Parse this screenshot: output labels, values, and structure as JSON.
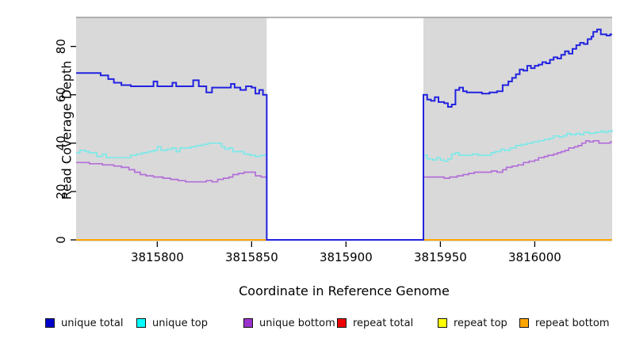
{
  "chart_data": {
    "type": "line",
    "step": true,
    "title": "",
    "xlabel": "Coordinate in Reference Genome",
    "ylabel": "Read Coverage Depth",
    "xlim": [
      3815757,
      3816041
    ],
    "ylim": [
      0,
      92
    ],
    "x_ticks": [
      3815800,
      3815850,
      3815900,
      3815950,
      3816000
    ],
    "y_ticks": [
      0,
      20,
      40,
      60,
      80
    ],
    "grid": false,
    "panel_background": "#d9d9d9",
    "gap_region": {
      "from": 3815858,
      "to": 3815941,
      "color": "#ffffff"
    },
    "top_border_color": "#9a9a9a",
    "axis_color": "#000000",
    "legend": {
      "position": "bottom",
      "items": [
        {
          "label": "unique total",
          "color": "#0000cc"
        },
        {
          "label": "unique top",
          "color": "#00ffff"
        },
        {
          "label": "unique bottom",
          "color": "#9933cc"
        },
        {
          "label": "repeat total",
          "color": "#ee0000"
        },
        {
          "label": "repeat top",
          "color": "#ffff00"
        },
        {
          "label": "repeat bottom",
          "color": "#ffa500"
        }
      ]
    },
    "series": [
      {
        "name": "repeat total",
        "color": "#ee0000",
        "width": 1.4,
        "segments": [
          [
            [
              3815757,
              0
            ],
            [
              3815858,
              0
            ]
          ],
          [
            [
              3815941,
              0
            ],
            [
              3816041,
              0
            ]
          ]
        ]
      },
      {
        "name": "repeat top",
        "color": "#ffff00",
        "width": 1.4,
        "segments": [
          [
            [
              3815757,
              0
            ],
            [
              3815858,
              0
            ]
          ],
          [
            [
              3815941,
              0
            ],
            [
              3816041,
              0
            ]
          ]
        ]
      },
      {
        "name": "repeat bottom",
        "color": "#ffa500",
        "width": 1.8,
        "segments": [
          [
            [
              3815757,
              0
            ],
            [
              3815858,
              0
            ]
          ],
          [
            [
              3815941,
              0
            ],
            [
              3816041,
              0
            ]
          ]
        ]
      },
      {
        "name": "unique bottom",
        "color": "#b26fd9",
        "width": 1.7,
        "segments": [
          [
            [
              3815757,
              32
            ],
            [
              3815764,
              31.5
            ],
            [
              3815771,
              31
            ],
            [
              3815777,
              30.5
            ],
            [
              3815781,
              30
            ],
            [
              3815785,
              29
            ],
            [
              3815788,
              28
            ],
            [
              3815791,
              27
            ],
            [
              3815794,
              26.5
            ],
            [
              3815798,
              26
            ],
            [
              3815803,
              25.5
            ],
            [
              3815807,
              25
            ],
            [
              3815811,
              24.5
            ],
            [
              3815815,
              24
            ],
            [
              3815823,
              24
            ],
            [
              3815826,
              24.5
            ],
            [
              3815829,
              24
            ],
            [
              3815832,
              25
            ],
            [
              3815835,
              25.5
            ],
            [
              3815838,
              26
            ],
            [
              3815840,
              27
            ],
            [
              3815843,
              27.5
            ],
            [
              3815846,
              28
            ],
            [
              3815850,
              28
            ],
            [
              3815852,
              26.5
            ],
            [
              3815855,
              26
            ],
            [
              3815858,
              0
            ],
            [
              3815941,
              26
            ],
            [
              3815949,
              26
            ],
            [
              3815952,
              25.5
            ],
            [
              3815955,
              26
            ],
            [
              3815959,
              26.5
            ],
            [
              3815962,
              27
            ],
            [
              3815965,
              27.5
            ],
            [
              3815968,
              28
            ],
            [
              3815974,
              28
            ],
            [
              3815977,
              28.5
            ],
            [
              3815980,
              28
            ],
            [
              3815983,
              29
            ],
            [
              3815985,
              30
            ],
            [
              3815988,
              30.5
            ],
            [
              3815991,
              31
            ],
            [
              3815994,
              32
            ],
            [
              3815997,
              32.5
            ],
            [
              3816000,
              33
            ],
            [
              3816002,
              34
            ],
            [
              3816005,
              34.5
            ],
            [
              3816007,
              35
            ],
            [
              3816010,
              35.5
            ],
            [
              3816012,
              36
            ],
            [
              3816014,
              36.5
            ],
            [
              3816016,
              37
            ],
            [
              3816018,
              38
            ],
            [
              3816021,
              38.5
            ],
            [
              3816023,
              39
            ],
            [
              3816025,
              40
            ],
            [
              3816027,
              41
            ],
            [
              3816029,
              40.5
            ],
            [
              3816031,
              41
            ],
            [
              3816034,
              40
            ],
            [
              3816038,
              40
            ],
            [
              3816040,
              40.5
            ],
            [
              3816041,
              40.5
            ]
          ]
        ]
      },
      {
        "name": "unique top",
        "color": "#7de9e9",
        "width": 1.7,
        "segments": [
          [
            [
              3815757,
              36
            ],
            [
              3815759,
              37
            ],
            [
              3815762,
              36.5
            ],
            [
              3815764,
              36
            ],
            [
              3815768,
              34.5
            ],
            [
              3815771,
              35.5
            ],
            [
              3815773,
              34
            ],
            [
              3815783,
              34
            ],
            [
              3815786,
              35
            ],
            [
              3815789,
              35.5
            ],
            [
              3815792,
              36
            ],
            [
              3815795,
              36.5
            ],
            [
              3815798,
              37
            ],
            [
              3815800,
              38.5
            ],
            [
              3815802,
              37
            ],
            [
              3815805,
              37.5
            ],
            [
              3815808,
              38
            ],
            [
              3815810,
              36.5
            ],
            [
              3815812,
              38
            ],
            [
              3815818,
              38.5
            ],
            [
              3815821,
              39
            ],
            [
              3815824,
              39.5
            ],
            [
              3815827,
              40
            ],
            [
              3815832,
              40
            ],
            [
              3815834,
              38.5
            ],
            [
              3815836,
              37.5
            ],
            [
              3815838,
              38
            ],
            [
              3815840,
              36.5
            ],
            [
              3815843,
              36.5
            ],
            [
              3815846,
              35.5
            ],
            [
              3815849,
              35
            ],
            [
              3815852,
              34.5
            ],
            [
              3815855,
              35
            ],
            [
              3815858,
              0
            ],
            [
              3815941,
              35
            ],
            [
              3815943,
              33.5
            ],
            [
              3815946,
              33
            ],
            [
              3815948,
              34
            ],
            [
              3815950,
              33
            ],
            [
              3815952,
              32.5
            ],
            [
              3815954,
              33.5
            ],
            [
              3815956,
              35.5
            ],
            [
              3815958,
              36
            ],
            [
              3815960,
              35
            ],
            [
              3815963,
              35
            ],
            [
              3815967,
              35.5
            ],
            [
              3815970,
              35
            ],
            [
              3815974,
              35
            ],
            [
              3815977,
              36
            ],
            [
              3815979,
              36.5
            ],
            [
              3815982,
              37.5
            ],
            [
              3815984,
              37
            ],
            [
              3815987,
              38
            ],
            [
              3815990,
              39
            ],
            [
              3815993,
              39.5
            ],
            [
              3815996,
              40
            ],
            [
              3815999,
              40.5
            ],
            [
              3816002,
              41
            ],
            [
              3816005,
              41.5
            ],
            [
              3816008,
              42
            ],
            [
              3816010,
              43
            ],
            [
              3816013,
              42.5
            ],
            [
              3816015,
              43
            ],
            [
              3816017,
              44
            ],
            [
              3816019,
              43.5
            ],
            [
              3816022,
              44
            ],
            [
              3816024,
              43.5
            ],
            [
              3816026,
              44.5
            ],
            [
              3816029,
              44
            ],
            [
              3816032,
              44.5
            ],
            [
              3816035,
              45
            ],
            [
              3816037,
              44.5
            ],
            [
              3816039,
              45
            ],
            [
              3816041,
              45.5
            ]
          ]
        ]
      },
      {
        "name": "unique total",
        "color": "#2222e0",
        "width": 2,
        "segments": [
          [
            [
              3815757,
              69
            ],
            [
              3815770,
              68
            ],
            [
              3815774,
              66.5
            ],
            [
              3815777,
              65
            ],
            [
              3815781,
              64
            ],
            [
              3815786,
              63.5
            ],
            [
              3815796,
              63.5
            ],
            [
              3815798,
              65.5
            ],
            [
              3815800,
              63.5
            ],
            [
              3815806,
              63.5
            ],
            [
              3815808,
              65
            ],
            [
              3815810,
              63.5
            ],
            [
              3815817,
              63.5
            ],
            [
              3815819,
              66
            ],
            [
              3815822,
              63.5
            ],
            [
              3815826,
              61
            ],
            [
              3815829,
              63
            ],
            [
              3815837,
              63
            ],
            [
              3815839,
              64.5
            ],
            [
              3815841,
              63
            ],
            [
              3815844,
              62
            ],
            [
              3815847,
              63.5
            ],
            [
              3815850,
              63
            ],
            [
              3815852,
              60.5
            ],
            [
              3815854,
              62
            ],
            [
              3815856,
              60
            ],
            [
              3815858,
              0
            ],
            [
              3815941,
              60
            ],
            [
              3815943,
              58
            ],
            [
              3815945,
              57.5
            ],
            [
              3815947,
              59
            ],
            [
              3815949,
              57
            ],
            [
              3815952,
              56.5
            ],
            [
              3815954,
              55
            ],
            [
              3815956,
              56
            ],
            [
              3815958,
              62
            ],
            [
              3815960,
              63
            ],
            [
              3815962,
              61.5
            ],
            [
              3815964,
              61
            ],
            [
              3815972,
              60.5
            ],
            [
              3815976,
              61
            ],
            [
              3815980,
              61.5
            ],
            [
              3815983,
              64
            ],
            [
              3815986,
              65.5
            ],
            [
              3815988,
              67
            ],
            [
              3815990,
              68.5
            ],
            [
              3815992,
              70.5
            ],
            [
              3815994,
              70
            ],
            [
              3815996,
              72
            ],
            [
              3815998,
              71
            ],
            [
              3816000,
              72
            ],
            [
              3816002,
              72.5
            ],
            [
              3816004,
              73.5
            ],
            [
              3816006,
              73
            ],
            [
              3816008,
              74.5
            ],
            [
              3816010,
              75.5
            ],
            [
              3816012,
              75
            ],
            [
              3816014,
              76.5
            ],
            [
              3816016,
              78
            ],
            [
              3816018,
              77
            ],
            [
              3816020,
              79
            ],
            [
              3816022,
              80.5
            ],
            [
              3816024,
              81.5
            ],
            [
              3816026,
              81
            ],
            [
              3816028,
              83
            ],
            [
              3816030,
              84
            ],
            [
              3816031,
              86
            ],
            [
              3816033,
              87
            ],
            [
              3816035,
              85
            ],
            [
              3816038,
              84.5
            ],
            [
              3816040,
              85
            ],
            [
              3816041,
              85
            ]
          ]
        ]
      }
    ]
  }
}
